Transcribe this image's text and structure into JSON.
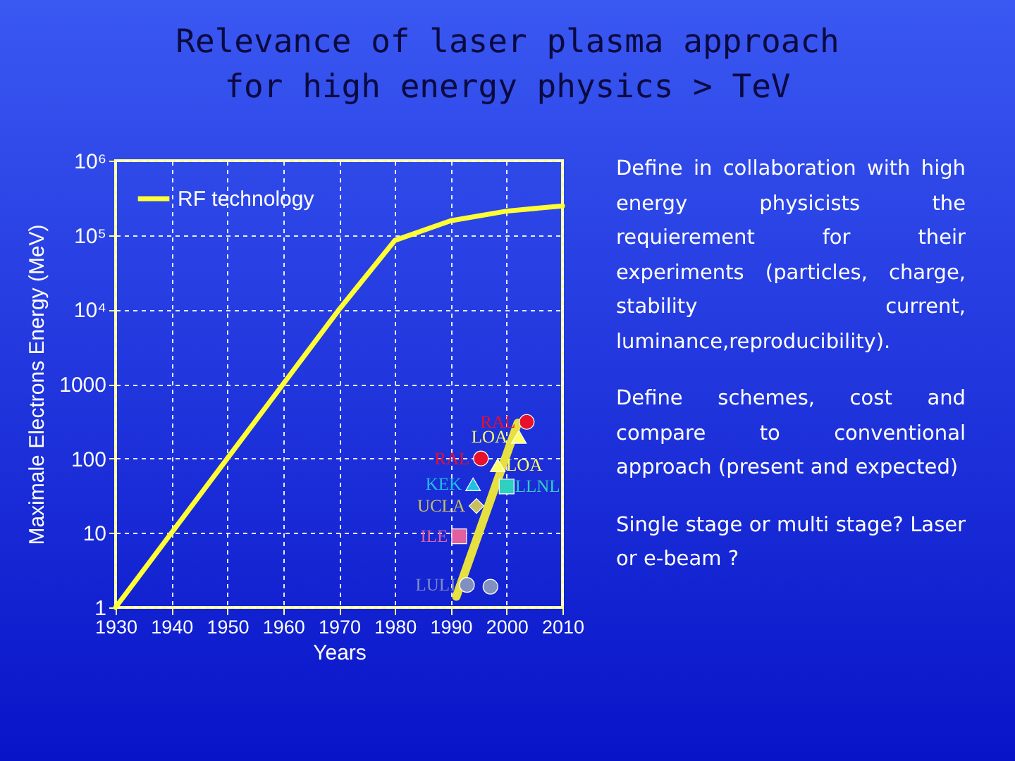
{
  "chart_data": {
    "type": "line",
    "title": "Relevance of  laser plasma approach\nfor high energy physics > TeV",
    "xlabel": "Years",
    "ylabel": "Maximale Electrons Energy  (MeV)",
    "log": "y",
    "grid": true,
    "legend": "top left",
    "xlim": [
      1930,
      2010
    ],
    "xticks": [
      1930,
      1940,
      1950,
      1960,
      1970,
      1980,
      1990,
      2000,
      2010
    ],
    "ylim": [
      1,
      1000000
    ],
    "yticks": [
      1,
      10,
      100,
      1000,
      {
        "value": 10000,
        "label": "10⁴"
      },
      {
        "value": 100000,
        "label": "10⁵"
      },
      {
        "value": 1000000,
        "label": "10⁶"
      }
    ],
    "series": [
      {
        "name": "RF technology",
        "color": "#ffff33",
        "x": [
          1930,
          1940,
          1950,
          1960,
          1970,
          1980,
          1990,
          2000,
          2010
        ],
        "values": [
          1,
          10,
          100,
          1000,
          10000,
          85000,
          156000,
          210000,
          247000
        ]
      },
      {
        "color": "#e6e040",
        "x": [
          1991,
          2002
        ],
        "values": [
          1.4,
          300
        ]
      },
      {
        "name": "RAL",
        "type": "scatter",
        "marker": "circle",
        "color": "#e8102a",
        "x": [
          2003.6
        ],
        "values": [
          310
        ]
      },
      {
        "name": "LOA",
        "type": "scatter",
        "marker": "triangle",
        "color": "#ffff66",
        "x": [
          2002.2
        ],
        "values": [
          195
        ]
      },
      {
        "name": "RAL",
        "type": "scatter",
        "marker": "circle",
        "color": "#e8102a",
        "x": [
          1995.4
        ],
        "values": [
          100
        ]
      },
      {
        "name": "LOA",
        "type": "scatter",
        "marker": "triangle",
        "color": "#ffff66",
        "x": [
          1998.4
        ],
        "values": [
          81
        ]
      },
      {
        "name": "KEK",
        "type": "scatter",
        "marker": "triangle",
        "color": "#20c0e0",
        "x": [
          1994
        ],
        "values": [
          45
        ]
      },
      {
        "name": "LLNL",
        "type": "scatter",
        "marker": "square",
        "color": "#30d0c0",
        "x": [
          2000
        ],
        "values": [
          42
        ]
      },
      {
        "name": "UCLA",
        "type": "scatter",
        "marker": "diamond",
        "color": "#c8c060",
        "x": [
          1994.6
        ],
        "values": [
          23
        ]
      },
      {
        "name": "ILE",
        "type": "scatter",
        "marker": "square",
        "color": "#e060a0",
        "x": [
          1991.5
        ],
        "values": [
          9
        ]
      },
      {
        "name": "LULI",
        "type": "scatter",
        "marker": "circle",
        "color": "#8090c0",
        "x": [
          1992.9,
          1997.1
        ],
        "values": [
          2,
          1.9
        ]
      }
    ],
    "annotations": [
      "Define in collaboration with high energy physicists the requierement for their experiments (particles, charge, stability current, luminance,reproducibility).",
      "Define schemes, cost and compare to conventional approach (present and expected)",
      "Single stage or multi stage? Laser or e-beam ?"
    ]
  }
}
